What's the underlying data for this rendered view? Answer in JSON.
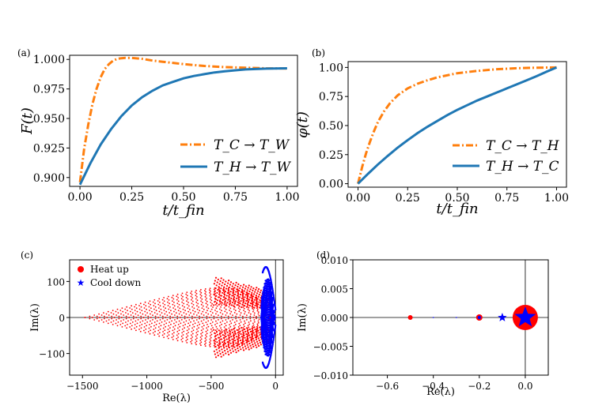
{
  "colors": {
    "orange": "#ff7f0e",
    "blue": "#1f77b4",
    "red": "#ff0000",
    "pureblue": "#0000ff"
  },
  "chart_data": [
    {
      "id": "a",
      "panel_label": "(a)",
      "type": "line",
      "ylabel": "F(t)",
      "xlabel": "t/t_fin",
      "xlim": [
        -0.05,
        1.05
      ],
      "ylim": [
        0.8925,
        1.0035
      ],
      "xticks": [
        "0.00",
        "0.25",
        "0.50",
        "0.75",
        "1.00"
      ],
      "yticks": [
        "0.900",
        "0.925",
        "0.950",
        "0.975",
        "1.000"
      ],
      "legend_position": "lower-right",
      "series": [
        {
          "name": "T_C → T_W",
          "style": "dashdot",
          "color": "#ff7f0e",
          "x": [
            0,
            0.02,
            0.04,
            0.06,
            0.08,
            0.1,
            0.12,
            0.14,
            0.16,
            0.18,
            0.2,
            0.22,
            0.25,
            0.3,
            0.35,
            0.4,
            0.5,
            0.6,
            0.7,
            0.8,
            0.9,
            1.0
          ],
          "y": [
            0.896,
            0.924,
            0.945,
            0.962,
            0.975,
            0.985,
            0.992,
            0.996,
            0.999,
            1.0005,
            1.001,
            1.0013,
            1.0012,
            1.0005,
            0.999,
            0.998,
            0.996,
            0.9945,
            0.9935,
            0.993,
            0.9925,
            0.9923
          ]
        },
        {
          "name": "T_H → T_W",
          "style": "solid",
          "color": "#1f77b4",
          "x": [
            0,
            0.05,
            0.1,
            0.15,
            0.2,
            0.25,
            0.3,
            0.35,
            0.4,
            0.45,
            0.5,
            0.55,
            0.6,
            0.65,
            0.7,
            0.75,
            0.8,
            0.9,
            1.0
          ],
          "y": [
            0.894,
            0.912,
            0.928,
            0.941,
            0.952,
            0.961,
            0.968,
            0.9735,
            0.978,
            0.981,
            0.984,
            0.986,
            0.9875,
            0.989,
            0.99,
            0.9908,
            0.9915,
            0.9922,
            0.9925
          ]
        }
      ]
    },
    {
      "id": "b",
      "panel_label": "(b)",
      "type": "line",
      "ylabel": "φ(t)",
      "xlabel": "t/t_fin",
      "xlim": [
        -0.05,
        1.05
      ],
      "ylim": [
        -0.03,
        1.05
      ],
      "xticks": [
        "0.00",
        "0.25",
        "0.50",
        "0.75",
        "1.00"
      ],
      "yticks": [
        "0.00",
        "0.25",
        "0.50",
        "0.75",
        "1.00"
      ],
      "legend_position": "lower-right",
      "series": [
        {
          "name": "T_C → T_H",
          "style": "dashdot",
          "color": "#ff7f0e",
          "x": [
            0,
            0.02,
            0.04,
            0.06,
            0.08,
            0.1,
            0.13,
            0.16,
            0.2,
            0.25,
            0.3,
            0.35,
            0.4,
            0.5,
            0.6,
            0.7,
            0.8,
            0.9,
            1.0
          ],
          "y": [
            0.0,
            0.14,
            0.26,
            0.36,
            0.45,
            0.53,
            0.62,
            0.69,
            0.76,
            0.82,
            0.86,
            0.89,
            0.915,
            0.95,
            0.97,
            0.985,
            0.993,
            0.998,
            1.0
          ]
        },
        {
          "name": "T_H → T_C",
          "style": "solid",
          "color": "#1f77b4",
          "x": [
            0,
            0.05,
            0.1,
            0.15,
            0.2,
            0.25,
            0.3,
            0.35,
            0.4,
            0.45,
            0.5,
            0.55,
            0.6,
            0.65,
            0.7,
            0.75,
            0.8,
            0.85,
            0.9,
            0.95,
            1.0
          ],
          "y": [
            0.0,
            0.085,
            0.165,
            0.24,
            0.31,
            0.375,
            0.435,
            0.49,
            0.54,
            0.59,
            0.635,
            0.675,
            0.715,
            0.75,
            0.785,
            0.82,
            0.855,
            0.89,
            0.925,
            0.963,
            1.0
          ]
        }
      ]
    },
    {
      "id": "c",
      "panel_label": "(c)",
      "type": "scatter",
      "xlabel": "Re(λ)",
      "ylabel": "Im(λ)",
      "xlim": [
        -1600,
        60
      ],
      "ylim": [
        -160,
        160
      ],
      "xticks": [
        "−1500",
        "−1000",
        "−500",
        "0"
      ],
      "yticks": [
        "−100",
        "0",
        "100"
      ],
      "legend_position": "top-left",
      "series": [
        {
          "name": "Heat up",
          "marker": "circle",
          "color": "#ff0000",
          "x_extent": [
            -1480,
            -20
          ],
          "y_extent": [
            -130,
            130
          ]
        },
        {
          "name": "Cool down",
          "marker": "star",
          "color": "#0000ff",
          "x_extent": [
            -100,
            0
          ],
          "y_extent": [
            -155,
            150
          ]
        }
      ]
    },
    {
      "id": "d",
      "panel_label": "(d)",
      "type": "scatter",
      "xlabel": "Re(λ)",
      "ylabel": "Im(λ)",
      "xlim": [
        -0.75,
        0.1
      ],
      "ylim": [
        -0.01,
        0.01
      ],
      "xticks": [
        "−0.6",
        "−0.4",
        "−0.2",
        "0.0"
      ],
      "yticks": [
        "−0.010",
        "−0.005",
        "0.000",
        "0.005",
        "0.010"
      ],
      "points": [
        {
          "x": -0.5,
          "y": 0,
          "color": "#ff0000",
          "marker": "circle",
          "size": 3
        },
        {
          "x": -0.2,
          "y": 0,
          "color": "#ff0000",
          "marker": "circle",
          "size": 4
        },
        {
          "x": -0.2,
          "y": 0,
          "color": "#0000ff",
          "marker": "circle",
          "size": 2
        },
        {
          "x": -0.4,
          "y": 0,
          "color": "#0000ff",
          "marker": "circle",
          "size": 0.8
        },
        {
          "x": -0.3,
          "y": 0,
          "color": "#0000ff",
          "marker": "circle",
          "size": 0.8
        },
        {
          "x": -0.1,
          "y": 0,
          "color": "#0000ff",
          "marker": "star",
          "size": 6
        },
        {
          "x": 0.0,
          "y": 0,
          "color": "#ff0000",
          "marker": "circle",
          "size": 16
        },
        {
          "x": 0.0,
          "y": 0,
          "color": "#0000ff",
          "marker": "star",
          "size": 14
        }
      ]
    }
  ]
}
